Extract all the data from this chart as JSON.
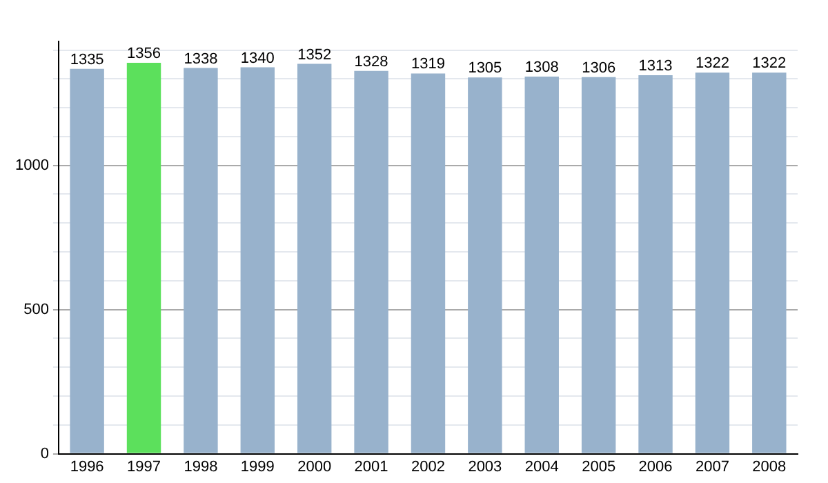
{
  "chart_data": {
    "type": "bar",
    "categories": [
      "1996",
      "1997",
      "1998",
      "1999",
      "2000",
      "2001",
      "2002",
      "2003",
      "2004",
      "2005",
      "2006",
      "2007",
      "2008"
    ],
    "values": [
      1335,
      1356,
      1338,
      1340,
      1352,
      1328,
      1319,
      1305,
      1308,
      1306,
      1313,
      1322,
      1322
    ],
    "colors": [
      "#98b2cc",
      "#5ce05c",
      "#98b2cc",
      "#98b2cc",
      "#98b2cc",
      "#98b2cc",
      "#98b2cc",
      "#98b2cc",
      "#98b2cc",
      "#98b2cc",
      "#98b2cc",
      "#98b2cc",
      "#98b2cc"
    ],
    "ylim": [
      0,
      1430
    ],
    "yticks": [
      0,
      {
        "value": 100,
        "label": null
      },
      {
        "value": 200,
        "label": null
      },
      {
        "value": 300,
        "label": null
      },
      {
        "value": 400,
        "label": null
      },
      500,
      {
        "value": 600,
        "label": null
      },
      {
        "value": 700,
        "label": null
      },
      {
        "value": 800,
        "label": null
      },
      {
        "value": 900,
        "label": null
      },
      1000,
      {
        "value": 1100,
        "label": null
      },
      {
        "value": 1200,
        "label": null
      },
      {
        "value": 1300,
        "label": null
      },
      {
        "value": 1400,
        "label": null
      }
    ],
    "grid": "y",
    "data_labels": true,
    "legend": false
  }
}
